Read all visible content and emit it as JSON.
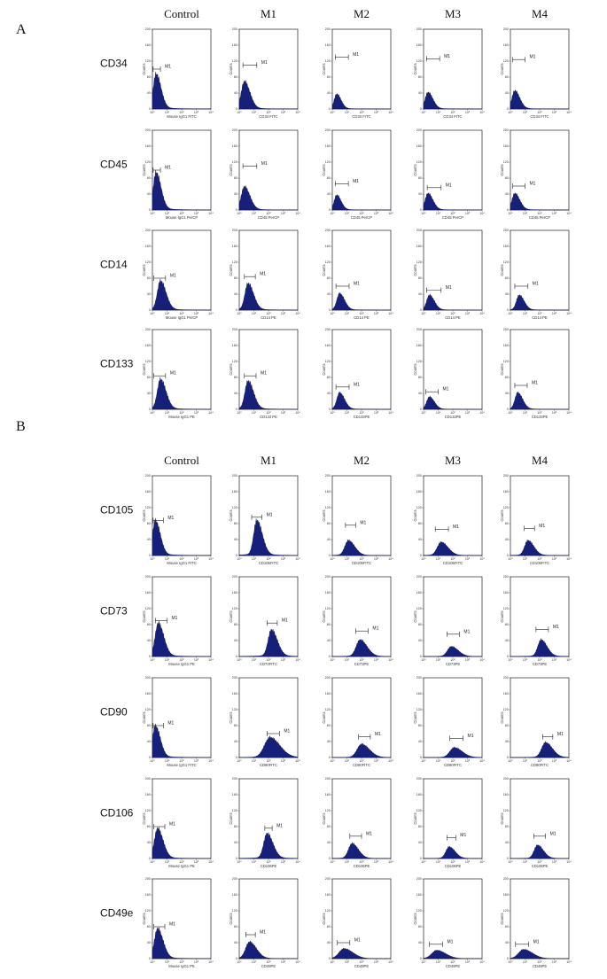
{
  "chart_data": [
    {
      "type": "histogram-grid",
      "panel_label": "A",
      "columns": [
        "Control",
        "M1",
        "M2",
        "M3",
        "M4"
      ],
      "rows": [
        {
          "marker": "CD34",
          "yticks": [
            "0",
            "40",
            "80",
            "120",
            "160",
            "200"
          ],
          "cells": [
            {
              "xlabel": "Mouse IgG1 FITC",
              "gate_label": "M1",
              "peak_log": 0.25,
              "width": 0.25,
              "height": 0.42,
              "gate": [
                0.05,
                0.55
              ],
              "gate_y": 0.5
            },
            {
              "xlabel": "CD34 FITC",
              "gate_label": "M1",
              "peak_log": 0.35,
              "width": 0.28,
              "height": 0.33,
              "gate": [
                0.25,
                1.2
              ],
              "gate_y": 0.55
            },
            {
              "xlabel": "CD34 FITC",
              "gate_label": "M1",
              "peak_log": 0.3,
              "width": 0.22,
              "height": 0.18,
              "gate": [
                0.2,
                1.1
              ],
              "gate_y": 0.65
            },
            {
              "xlabel": "CD34 FITC",
              "gate_label": "M1",
              "peak_log": 0.3,
              "width": 0.25,
              "height": 0.2,
              "gate": [
                0.2,
                1.1
              ],
              "gate_y": 0.63
            },
            {
              "xlabel": "CD34 FITC",
              "gate_label": "M1",
              "peak_log": 0.3,
              "width": 0.25,
              "height": 0.22,
              "gate": [
                0.15,
                1.0
              ],
              "gate_y": 0.62
            }
          ]
        },
        {
          "marker": "CD45",
          "yticks": [
            "0",
            "40",
            "80",
            "120",
            "160",
            "200"
          ],
          "cells": [
            {
              "xlabel": "Mouse IgG1 PerCP",
              "gate_label": "M1",
              "peak_log": 0.25,
              "width": 0.25,
              "height": 0.45,
              "gate": [
                0.05,
                0.55
              ],
              "gate_y": 0.5
            },
            {
              "xlabel": "CD45 PerCP",
              "gate_label": "M1",
              "peak_log": 0.35,
              "width": 0.28,
              "height": 0.28,
              "gate": [
                0.25,
                1.2
              ],
              "gate_y": 0.55
            },
            {
              "xlabel": "CD45 PerCP",
              "gate_label": "M1",
              "peak_log": 0.3,
              "width": 0.22,
              "height": 0.18,
              "gate": [
                0.2,
                1.1
              ],
              "gate_y": 0.33
            },
            {
              "xlabel": "CD45 PerCP",
              "gate_label": "M1",
              "peak_log": 0.3,
              "width": 0.25,
              "height": 0.2,
              "gate": [
                0.25,
                1.2
              ],
              "gate_y": 0.28
            },
            {
              "xlabel": "CD45 PerCP",
              "gate_label": "M1",
              "peak_log": 0.3,
              "width": 0.25,
              "height": 0.2,
              "gate": [
                0.15,
                1.0
              ],
              "gate_y": 0.3
            }
          ]
        },
        {
          "marker": "CD14",
          "yticks": [
            "0",
            "40",
            "80",
            "120",
            "160",
            "200"
          ],
          "cells": [
            {
              "xlabel": "Mouse IgG1 PerCP",
              "gate_label": "M1",
              "peak_log": 0.55,
              "width": 0.28,
              "height": 0.35,
              "gate": [
                0.1,
                0.9
              ],
              "gate_y": 0.4
            },
            {
              "xlabel": "CD14 PE",
              "gate_label": "M1",
              "peak_log": 0.6,
              "width": 0.28,
              "height": 0.32,
              "gate": [
                0.35,
                1.1
              ],
              "gate_y": 0.42
            },
            {
              "xlabel": "CD14 PE",
              "gate_label": "M1",
              "peak_log": 0.5,
              "width": 0.25,
              "height": 0.2,
              "gate": [
                0.25,
                1.15
              ],
              "gate_y": 0.3
            },
            {
              "xlabel": "CD14 PE",
              "gate_label": "M1",
              "peak_log": 0.4,
              "width": 0.25,
              "height": 0.18,
              "gate": [
                0.2,
                1.2
              ],
              "gate_y": 0.25
            },
            {
              "xlabel": "CD14 PE",
              "gate_label": "M1",
              "peak_log": 0.6,
              "width": 0.25,
              "height": 0.18,
              "gate": [
                0.3,
                1.2
              ],
              "gate_y": 0.3
            }
          ]
        },
        {
          "marker": "CD133",
          "yticks": [
            "0",
            "40",
            "80",
            "120",
            "160",
            "200"
          ],
          "cells": [
            {
              "xlabel": "Mouse IgG1 PE",
              "gate_label": "M1",
              "peak_log": 0.55,
              "width": 0.28,
              "height": 0.36,
              "gate": [
                0.1,
                0.9
              ],
              "gate_y": 0.42
            },
            {
              "xlabel": "CD133 PE",
              "gate_label": "M1",
              "peak_log": 0.6,
              "width": 0.28,
              "height": 0.34,
              "gate": [
                0.35,
                1.15
              ],
              "gate_y": 0.42
            },
            {
              "xlabel": "CD133PE",
              "gate_label": "M1",
              "peak_log": 0.5,
              "width": 0.25,
              "height": 0.2,
              "gate": [
                0.25,
                1.15
              ],
              "gate_y": 0.28
            },
            {
              "xlabel": "CD133PE",
              "gate_label": "M1",
              "peak_log": 0.4,
              "width": 0.25,
              "height": 0.15,
              "gate": [
                0.15,
                1.0
              ],
              "gate_y": 0.22
            },
            {
              "xlabel": "CD133PE",
              "gate_label": "M1",
              "peak_log": 0.5,
              "width": 0.25,
              "height": 0.2,
              "gate": [
                0.3,
                1.15
              ],
              "gate_y": 0.3
            }
          ]
        }
      ]
    },
    {
      "type": "histogram-grid",
      "panel_label": "B",
      "columns": [
        "Control",
        "M1",
        "M2",
        "M3",
        "M4"
      ],
      "rows": [
        {
          "marker": "CD105",
          "yticks": [
            "0",
            "40",
            "80",
            "120",
            "160",
            "200"
          ],
          "cells": [
            {
              "xlabel": "Mouse IgG1 FITC",
              "gate_label": "M1",
              "peak_log": 0.2,
              "width": 0.25,
              "height": 0.42,
              "gate": [
                0.05,
                0.75
              ],
              "gate_y": 0.44
            },
            {
              "xlabel": "CD105FITC",
              "gate_label": "M1",
              "peak_log": 1.2,
              "width": 0.28,
              "height": 0.42,
              "gate": [
                0.85,
                1.55
              ],
              "gate_y": 0.48
            },
            {
              "xlabel": "CD105FITC",
              "gate_label": "M1",
              "peak_log": 1.1,
              "width": 0.32,
              "height": 0.18,
              "gate": [
                0.9,
                1.6
              ],
              "gate_y": 0.38
            },
            {
              "xlabel": "CD105FITC",
              "gate_label": "M1",
              "peak_log": 1.2,
              "width": 0.35,
              "height": 0.16,
              "gate": [
                0.8,
                1.7
              ],
              "gate_y": 0.33
            },
            {
              "xlabel": "CD105FITC",
              "gate_label": "M1",
              "peak_log": 1.2,
              "width": 0.3,
              "height": 0.18,
              "gate": [
                0.95,
                1.65
              ],
              "gate_y": 0.34
            }
          ]
        },
        {
          "marker": "CD73",
          "yticks": [
            "0",
            "40",
            "80",
            "120",
            "160",
            "200"
          ],
          "cells": [
            {
              "xlabel": "Mouse IgG1 PE",
              "gate_label": "M1",
              "peak_log": 0.4,
              "width": 0.28,
              "height": 0.4,
              "gate": [
                0.2,
                1.0
              ],
              "gate_y": 0.45
            },
            {
              "xlabel": "CD73FITC",
              "gate_label": "M1",
              "peak_log": 2.2,
              "width": 0.3,
              "height": 0.32,
              "gate": [
                1.9,
                2.6
              ],
              "gate_y": 0.42
            },
            {
              "xlabel": "CD73PE",
              "gate_label": "M1",
              "peak_log": 1.9,
              "width": 0.35,
              "height": 0.2,
              "gate": [
                1.6,
                2.45
              ],
              "gate_y": 0.32
            },
            {
              "xlabel": "CD73PE",
              "gate_label": "M1",
              "peak_log": 1.9,
              "width": 0.35,
              "height": 0.12,
              "gate": [
                1.6,
                2.45
              ],
              "gate_y": 0.28
            },
            {
              "xlabel": "CD73PE",
              "gate_label": "M1",
              "peak_log": 2.1,
              "width": 0.3,
              "height": 0.2,
              "gate": [
                1.75,
                2.6
              ],
              "gate_y": 0.34
            }
          ]
        },
        {
          "marker": "CD90",
          "yticks": [
            "0",
            "40",
            "80",
            "120",
            "160",
            "200"
          ],
          "cells": [
            {
              "xlabel": "Mouse IgG1 FITC",
              "gate_label": "M1",
              "peak_log": 0.2,
              "width": 0.25,
              "height": 0.38,
              "gate": [
                0.05,
                0.75
              ],
              "gate_y": 0.4
            },
            {
              "xlabel": "CD90FITC",
              "gate_label": "M1",
              "peak_log": 2.1,
              "width": 0.5,
              "height": 0.24,
              "gate": [
                1.9,
                2.75
              ],
              "gate_y": 0.3
            },
            {
              "xlabel": "CD90FITC",
              "gate_label": "M1",
              "peak_log": 2.0,
              "width": 0.4,
              "height": 0.16,
              "gate": [
                1.8,
                2.6
              ],
              "gate_y": 0.26
            },
            {
              "xlabel": "CD90FITC",
              "gate_label": "M1",
              "peak_log": 2.1,
              "width": 0.4,
              "height": 0.12,
              "gate": [
                1.8,
                2.7
              ],
              "gate_y": 0.24
            },
            {
              "xlabel": "CD90FITC",
              "gate_label": "M1",
              "peak_log": 2.4,
              "width": 0.35,
              "height": 0.18,
              "gate": [
                2.2,
                2.9
              ],
              "gate_y": 0.26
            }
          ]
        },
        {
          "marker": "CD106",
          "yticks": [
            "0",
            "40",
            "80",
            "120",
            "160",
            "200"
          ],
          "cells": [
            {
              "xlabel": "Mouse IgG1 PE",
              "gate_label": "M1",
              "peak_log": 0.35,
              "width": 0.28,
              "height": 0.36,
              "gate": [
                0.1,
                0.85
              ],
              "gate_y": 0.4
            },
            {
              "xlabel": "CD106PE",
              "gate_label": "M1",
              "peak_log": 1.9,
              "width": 0.3,
              "height": 0.3,
              "gate": [
                1.75,
                2.25
              ],
              "gate_y": 0.38
            },
            {
              "xlabel": "CD106PE",
              "gate_label": "M1",
              "peak_log": 1.35,
              "width": 0.32,
              "height": 0.18,
              "gate": [
                1.2,
                2.0
              ],
              "gate_y": 0.28
            },
            {
              "xlabel": "CD106PE",
              "gate_label": "M1",
              "peak_log": 1.75,
              "width": 0.3,
              "height": 0.14,
              "gate": [
                1.6,
                2.2
              ],
              "gate_y": 0.26
            },
            {
              "xlabel": "CD106PE",
              "gate_label": "M1",
              "peak_log": 1.85,
              "width": 0.3,
              "height": 0.16,
              "gate": [
                1.6,
                2.4
              ],
              "gate_y": 0.28
            }
          ]
        },
        {
          "marker": "CD49e",
          "yticks": [
            "0",
            "40",
            "80",
            "120",
            "160",
            "200"
          ],
          "cells": [
            {
              "xlabel": "Mouse IgG1 PE",
              "gate_label": "M1",
              "peak_log": 0.35,
              "width": 0.28,
              "height": 0.36,
              "gate": [
                0.1,
                0.85
              ],
              "gate_y": 0.4
            },
            {
              "xlabel": "CD49PE",
              "gate_label": "M1",
              "peak_log": 0.7,
              "width": 0.35,
              "height": 0.2,
              "gate": [
                0.45,
                1.1
              ],
              "gate_y": 0.3
            },
            {
              "xlabel": "CD49PE",
              "gate_label": "M1",
              "peak_log": 0.8,
              "width": 0.45,
              "height": 0.12,
              "gate": [
                0.35,
                1.2
              ],
              "gate_y": 0.2
            },
            {
              "xlabel": "CD49PE",
              "gate_label": "M1",
              "peak_log": 0.9,
              "width": 0.45,
              "height": 0.1,
              "gate": [
                0.4,
                1.3
              ],
              "gate_y": 0.18
            },
            {
              "xlabel": "CD49PE",
              "gate_label": "M1",
              "peak_log": 0.9,
              "width": 0.45,
              "height": 0.11,
              "gate": [
                0.35,
                1.25
              ],
              "gate_y": 0.18
            }
          ]
        }
      ]
    }
  ],
  "xticks": [
    "10⁰",
    "10¹",
    "10²",
    "10³",
    "10⁴"
  ],
  "y_axis_label": "Counts",
  "colors": {
    "histogram_fill": "#16207a",
    "frame": "#222222"
  }
}
